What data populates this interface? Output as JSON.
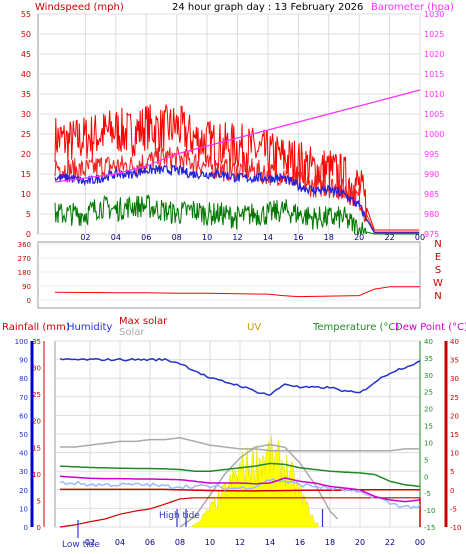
{
  "header": {
    "left": "Windspeed (mph)",
    "center": "24 hour graph day : 13 February 2026",
    "right": "Barometer (hpa)"
  },
  "colors": {
    "wind": "#ff0000",
    "gust_bg": "#cc0000",
    "avg_wind": "#2222dd",
    "gust_low": "#007700",
    "baro": "#ff33ff",
    "grid": "#ff0000",
    "wdir": "#ff0000",
    "rain": "#cc0000",
    "hum": "#2233cc",
    "maxsolar": "#aaaaaa",
    "solar": "#ffff00",
    "uv": "#cc9900",
    "temp": "#228822",
    "dew": "#cc00cc",
    "chill": "#99bbff",
    "tide": "#3333cc",
    "rainaxis": "#0000cc"
  },
  "x_ticks": [
    "02",
    "04",
    "06",
    "08",
    "10",
    "12",
    "14",
    "16",
    "18",
    "20",
    "22",
    "00"
  ],
  "chart_data": [
    {
      "type": "line",
      "title": "24 hour graph day : 13 February 2026",
      "ylabel": "Windspeed (mph)",
      "y2label": "Barometer (hpa)",
      "ylim": [
        0,
        55
      ],
      "y2lim": [
        975,
        1030
      ],
      "yticks": [
        0,
        5,
        10,
        15,
        20,
        25,
        30,
        35,
        40,
        45,
        50,
        55
      ],
      "y2ticks": [
        975,
        980,
        985,
        990,
        995,
        1000,
        1005,
        1010,
        1015,
        1020,
        1025,
        1030
      ],
      "x_hours": [
        0,
        1,
        2,
        3,
        4,
        5,
        6,
        7,
        8,
        9,
        10,
        11,
        12,
        13,
        14,
        15,
        16,
        17,
        18,
        19,
        20,
        21,
        22,
        23,
        24
      ],
      "series": [
        {
          "name": "gust",
          "values": [
            24,
            23,
            24,
            25,
            26,
            25,
            27,
            26,
            27,
            24,
            23,
            22,
            22,
            21,
            20,
            19,
            18,
            16,
            16,
            14,
            12,
            1,
            1,
            1,
            1
          ]
        },
        {
          "name": "wind",
          "values": [
            17,
            16,
            16,
            17,
            17,
            17,
            18,
            19,
            19,
            18,
            17,
            16,
            16,
            16,
            15,
            15,
            13,
            12,
            12,
            11,
            9,
            0.5,
            0.5,
            0.5,
            0.5
          ]
        },
        {
          "name": "avg",
          "values": [
            14,
            14,
            13,
            14,
            15,
            15,
            16,
            16,
            16,
            15,
            15,
            15,
            14,
            14,
            14,
            14,
            12,
            11,
            11,
            10,
            7,
            0.3,
            0.3,
            0.3,
            0.3
          ]
        },
        {
          "name": "low",
          "values": [
            5,
            5,
            5,
            7,
            6,
            7,
            7,
            6,
            5,
            6,
            5,
            5,
            4,
            5,
            5,
            6,
            5,
            4,
            4,
            4,
            1,
            0,
            0,
            0,
            0
          ]
        },
        {
          "name": "barometer",
          "values": [
            988,
            988.5,
            989,
            989.5,
            990,
            991,
            992,
            993.5,
            995,
            996,
            997,
            998,
            999,
            1000,
            1001,
            1002,
            1003,
            1004,
            1005,
            1006,
            1007,
            1008,
            1009,
            1010,
            1011
          ]
        }
      ]
    },
    {
      "type": "line",
      "ylabel": "Wind direction",
      "ylim": [
        0,
        360
      ],
      "yticks": [
        0,
        90,
        180,
        270,
        360
      ],
      "right_labels": [
        "N",
        "W",
        "S",
        "E",
        "N"
      ],
      "x_hours": [
        0,
        2,
        4,
        6,
        8,
        10,
        12,
        14,
        15,
        16,
        18,
        20,
        21,
        22,
        24
      ],
      "values": [
        50,
        48,
        46,
        47,
        44,
        43,
        40,
        38,
        28,
        22,
        25,
        28,
        70,
        85,
        85
      ]
    },
    {
      "type": "line",
      "legend": [
        "Rainfall (mm)",
        "Humidity",
        "Max solar",
        "Solar",
        "UV",
        "Temperature (°C)",
        "Dew Point (°C)"
      ],
      "ylim_humidity": [
        0,
        100
      ],
      "yticks_humidity": [
        0,
        10,
        20,
        30,
        40,
        50,
        60,
        70,
        80,
        90,
        100
      ],
      "ylim_rain": [
        0,
        35
      ],
      "yticks_rain": [
        0,
        5,
        10,
        15,
        20,
        25,
        30,
        35
      ],
      "ylim_temp": [
        -15,
        40
      ],
      "yticks_temp": [
        -15,
        -10,
        -5,
        0,
        5,
        10,
        15,
        20,
        25,
        30,
        35,
        40
      ],
      "ylim_dew": [
        -10,
        40
      ],
      "yticks_dew": [
        -10,
        -5,
        0,
        5,
        10,
        15,
        20,
        25,
        30,
        35,
        40
      ],
      "x_hours": [
        0,
        1,
        2,
        3,
        4,
        5,
        6,
        7,
        8,
        9,
        10,
        11,
        12,
        13,
        14,
        15,
        16,
        17,
        18,
        19,
        20,
        21,
        22,
        23,
        24
      ],
      "series": [
        {
          "name": "Humidity",
          "values": [
            90,
            90,
            90,
            90,
            90,
            90,
            90,
            90,
            88,
            84,
            80,
            78,
            76,
            73,
            71,
            77,
            75,
            75,
            75,
            73,
            72,
            78,
            83,
            86,
            89
          ]
        },
        {
          "name": "Rainfall (mm)",
          "values": [
            0,
            0.4,
            1,
            1.5,
            2.4,
            3,
            3.4,
            4.3,
            5.3,
            5.5,
            5.5,
            5.5,
            5.5,
            5.5,
            5.5,
            5.5,
            5.5,
            5.5,
            5.5,
            5.5,
            5.5,
            5.5,
            5.5,
            5.5,
            5.5
          ]
        },
        {
          "name": "rain_rate",
          "values": [
            20.2,
            20.2,
            20.2,
            20.2,
            20.2,
            20.2,
            20.2,
            20.2,
            20.0,
            19.8,
            19.6,
            19.5,
            19.4,
            19.4,
            19.5,
            19.6,
            19.7,
            19.8,
            19.8,
            19.9,
            20.0,
            20.0,
            20.0,
            20.0,
            20.0
          ]
        },
        {
          "name": "Max solar",
          "values": [
            43,
            43,
            44,
            45,
            46,
            46,
            47,
            47,
            48,
            46,
            44,
            43,
            42,
            42,
            41,
            41,
            41,
            41,
            41,
            41,
            41,
            41,
            41,
            42,
            42
          ]
        },
        {
          "name": "Temperature (°C)",
          "values": [
            3,
            2.8,
            2.6,
            2.5,
            2.4,
            2.3,
            2.3,
            2.2,
            2.0,
            1.5,
            1.5,
            2.0,
            2.5,
            3.0,
            3.8,
            3.5,
            2.5,
            2.0,
            1.5,
            1.2,
            1.0,
            0.5,
            -1.5,
            -2.5,
            -3.0
          ]
        },
        {
          "name": "Dew Point (°C)",
          "values": [
            0,
            -0.3,
            -0.6,
            -0.7,
            -0.7,
            -0.8,
            -0.8,
            -0.9,
            -1,
            -1.5,
            -2,
            -2,
            -2,
            -2.2,
            -2.0,
            -0.5,
            -1.5,
            -2.0,
            -3.0,
            -3.5,
            -4.0,
            -6.0,
            -7.0,
            -7.5,
            -7.0
          ]
        },
        {
          "name": "chill",
          "values": [
            -2,
            -2,
            -2.5,
            -2.5,
            -2.5,
            -2.5,
            -2.5,
            -3,
            -3,
            -3,
            -3,
            -3.5,
            -3.5,
            -3,
            -1,
            -1.5,
            -2.5,
            -3,
            -3.5,
            -4,
            -5,
            -6,
            -8,
            -9,
            -9
          ]
        },
        {
          "name": "Solar",
          "values": [
            0,
            0,
            0,
            0,
            0,
            0,
            0,
            0,
            0,
            0.5,
            4,
            8,
            13,
            15,
            16,
            14,
            8,
            1,
            0,
            0,
            0,
            0,
            0,
            0,
            0
          ]
        },
        {
          "name": "Max solar curve",
          "values": [
            0,
            0,
            0,
            0,
            0,
            0,
            0,
            0,
            0,
            2,
            6,
            10,
            13,
            15,
            15.5,
            15,
            12,
            8,
            3,
            0,
            0,
            0,
            0,
            0,
            0
          ]
        }
      ],
      "tide": {
        "high_label": "High tide",
        "low_label": "Low tide",
        "high_hour": 7.8,
        "low_hour": 1.2
      }
    }
  ],
  "panel3_legend": {
    "rain": "Rainfall (mm)",
    "hum": "Humidity",
    "maxsolar": "Max solar",
    "solar": "Solar",
    "uv": "UV",
    "temp": "Temperature (°C)",
    "dew": "Dew Point (°C)"
  },
  "tide_labels": {
    "high": "High tide",
    "low": "Low tide"
  }
}
